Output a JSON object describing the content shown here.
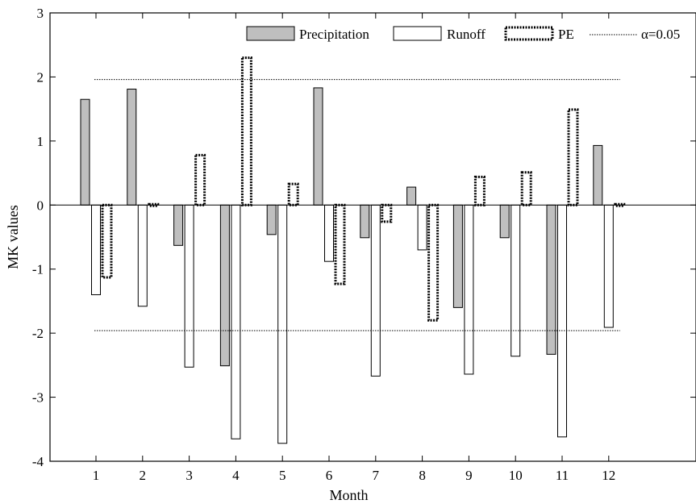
{
  "chart_data": {
    "type": "bar",
    "xlabel": "Month",
    "ylabel": "MK values",
    "ylim": [
      -4,
      3
    ],
    "yticks": [
      -4,
      -3,
      -2,
      -1,
      0,
      1,
      2,
      3
    ],
    "categories": [
      "1",
      "2",
      "3",
      "4",
      "5",
      "6",
      "7",
      "8",
      "9",
      "10",
      "11",
      "12"
    ],
    "series": [
      {
        "name": "Precipitation",
        "values": [
          1.65,
          1.81,
          -0.63,
          -2.51,
          -0.46,
          1.83,
          -0.51,
          0.28,
          -1.6,
          -0.51,
          -2.33,
          0.93
        ],
        "fill": "#bfbfbf",
        "style": "solid"
      },
      {
        "name": "Runoff",
        "values": [
          -1.4,
          -1.58,
          -2.53,
          -3.65,
          -3.72,
          -0.88,
          -2.67,
          -0.7,
          -2.64,
          -2.36,
          -3.62,
          -1.91
        ],
        "fill": "#ffffff",
        "style": "solid"
      },
      {
        "name": "PE",
        "values": [
          -1.13,
          0.01,
          0.78,
          2.3,
          0.33,
          -1.23,
          -0.26,
          -1.8,
          0.44,
          0.51,
          1.49,
          0.01
        ],
        "fill": "#ffffff",
        "style": "dotted"
      }
    ],
    "reference_lines": {
      "name": "α=0.05",
      "values": [
        1.96,
        -1.96
      ]
    },
    "legend": "top-right",
    "grid": false
  }
}
